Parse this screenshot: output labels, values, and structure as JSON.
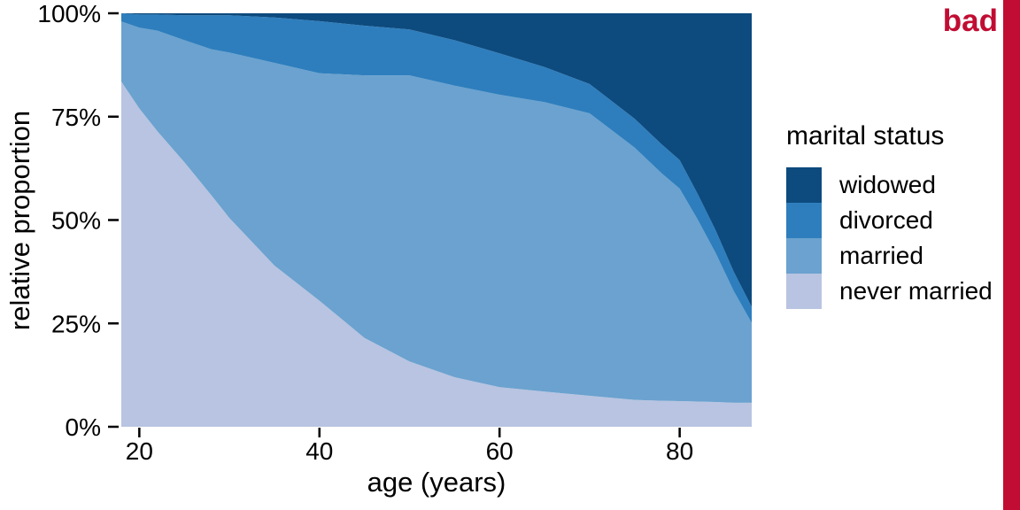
{
  "annotation": {
    "label": "bad",
    "color": "#c10d33"
  },
  "edge_bar": {
    "color": "#c10d33"
  },
  "legend": {
    "title": "marital status",
    "entries": [
      {
        "label": "widowed",
        "color": "#0d4a7e"
      },
      {
        "label": "divorced",
        "color": "#2e7ebd"
      },
      {
        "label": "married",
        "color": "#6ba2cf"
      },
      {
        "label": "never married",
        "color": "#b8c4e1"
      }
    ]
  },
  "axes": {
    "x_tick_values": [
      20,
      40,
      60,
      80
    ],
    "x_tick_labels": [
      "20",
      "40",
      "60",
      "80"
    ],
    "y_tick_values": [
      0,
      25,
      50,
      75,
      100
    ],
    "y_tick_labels": [
      "0%",
      "25%",
      "50%",
      "75%",
      "100%"
    ]
  },
  "chart_data": {
    "type": "area",
    "stacked": true,
    "normalized": "percent",
    "title": "",
    "xlabel": "age (years)",
    "ylabel": "relative proportion",
    "legend_title": "marital status",
    "legend_position": "right",
    "grid": false,
    "xlim": [
      18,
      88
    ],
    "ylim": [
      0,
      100
    ],
    "x": [
      18,
      20,
      22,
      25,
      28,
      30,
      35,
      40,
      45,
      50,
      55,
      60,
      65,
      70,
      75,
      78,
      80,
      82,
      84,
      86,
      88
    ],
    "series": [
      {
        "name": "never married",
        "color": "#b8c4e1",
        "values": [
          83.5,
          77.0,
          71.5,
          64.0,
          56.0,
          50.5,
          39.0,
          30.5,
          21.5,
          15.8,
          12.0,
          9.6,
          8.5,
          7.5,
          6.5,
          6.3,
          6.2,
          6.1,
          6.0,
          5.8,
          5.8
        ]
      },
      {
        "name": "married",
        "color": "#6ba2cf",
        "values": [
          14.5,
          19.5,
          24.3,
          29.5,
          35.3,
          40.0,
          49.0,
          55.0,
          63.5,
          69.2,
          70.5,
          70.7,
          70.0,
          68.3,
          61.0,
          55.0,
          51.4,
          44.0,
          36.0,
          27.0,
          19.3
        ]
      },
      {
        "name": "divorced",
        "color": "#2e7ebd",
        "values": [
          2.0,
          3.2,
          3.9,
          6.0,
          8.2,
          9.0,
          11.0,
          12.6,
          12.0,
          11.1,
          11.0,
          10.0,
          8.5,
          7.1,
          7.0,
          7.0,
          6.9,
          6.2,
          5.5,
          4.7,
          3.9
        ]
      },
      {
        "name": "widowed",
        "color": "#0d4a7e",
        "values": [
          0.0,
          0.3,
          0.3,
          0.5,
          0.5,
          0.5,
          1.0,
          1.9,
          3.0,
          3.9,
          6.5,
          9.7,
          13.0,
          17.1,
          25.5,
          31.7,
          35.5,
          43.7,
          52.5,
          62.5,
          71.0
        ]
      }
    ]
  }
}
